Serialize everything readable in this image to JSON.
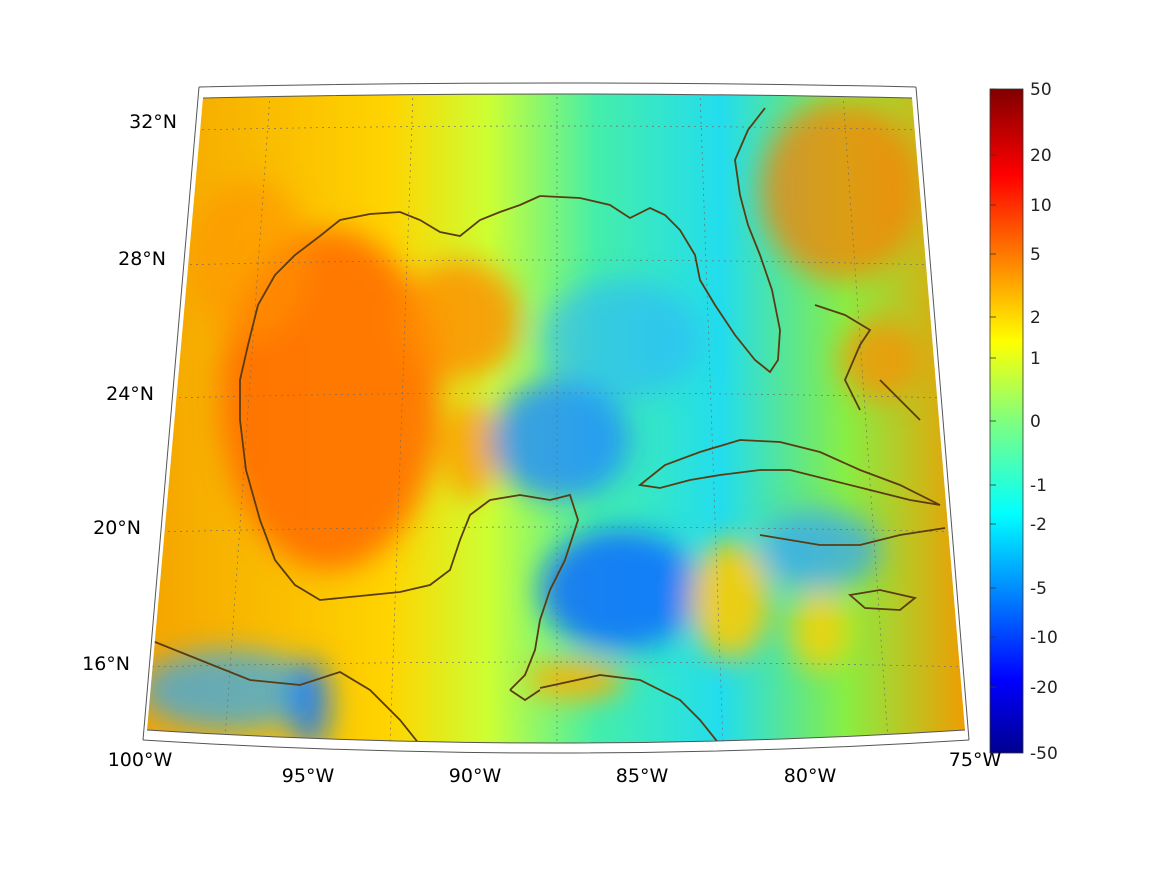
{
  "map": {
    "projection": "conic",
    "lon_range": [
      -100,
      -75
    ],
    "lat_range": [
      14,
      33
    ],
    "parallels": [
      -100,
      -75
    ],
    "longitude_ticks": [
      "100°W",
      "95°W",
      "90°W",
      "85°W",
      "80°W",
      "75°W"
    ],
    "latitude_ticks": [
      "16°N",
      "20°N",
      "24°N",
      "28°N",
      "32°N"
    ],
    "grid": true,
    "coastline_color": "#5a3c12"
  },
  "colorbar": {
    "colormap": "jet",
    "scale": "symmetric-log",
    "range": [
      -50,
      50
    ],
    "tick_labels": [
      "50",
      "20",
      "10",
      "5",
      "2",
      "1",
      "0",
      "-1",
      "-2",
      "-5",
      "-10",
      "-20",
      "-50"
    ]
  }
}
